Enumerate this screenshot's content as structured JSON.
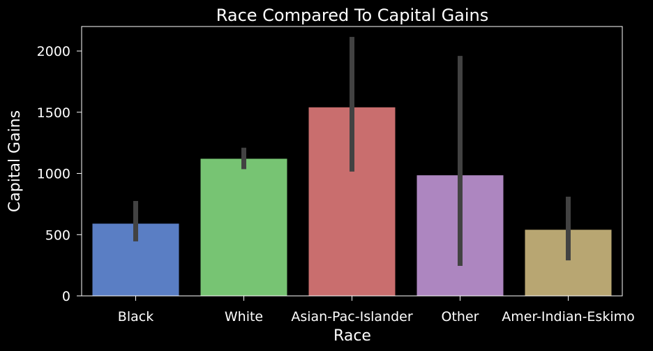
{
  "chart_data": {
    "type": "bar",
    "title": "Race Compared To Capital Gains",
    "xlabel": "Race",
    "ylabel": "Capital Gains",
    "categories": [
      "Black",
      "White",
      "Asian-Pac-Islander",
      "Other",
      "Amer-Indian-Eskimo"
    ],
    "values": [
      590,
      1120,
      1540,
      985,
      540
    ],
    "error_low": [
      445,
      1035,
      1015,
      245,
      290
    ],
    "error_high": [
      775,
      1210,
      2115,
      1960,
      810
    ],
    "yticks": [
      0,
      500,
      1000,
      1500,
      2000
    ],
    "ylim": [
      0,
      2200
    ],
    "grid": false,
    "colors": [
      "#5A7EC4",
      "#77C473",
      "#C96E6E",
      "#AD86C0",
      "#B8A672"
    ],
    "background": "#000000",
    "error_color": "#424242"
  }
}
